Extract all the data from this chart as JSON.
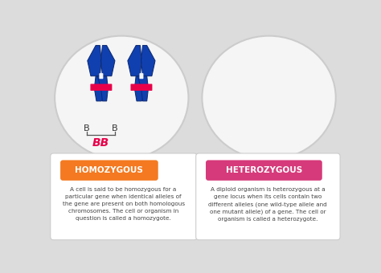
{
  "background_color": "#dcdcdc",
  "homo_label": "HOMOZYGOUS",
  "hetero_label": "HETEROZYGOUS",
  "homo_color": "#f47920",
  "hetero_color": "#d63a7a",
  "homo_text": "A cell is said to be homozygous for a\nparticular gene when identical alleles of\nthe gene are present on both homologous\nchromosomes. The cell or organism in\nquestion is called a homozygote.",
  "hetero_text": "A diploid organism is heterozygous at a\ngene locus when its cells contain two\ndifferent alleles (one wild-type allele and\none mutant allele) of a gene. The cell or\norganism is called a heterozygote.",
  "chrom_blue": "#1040b0",
  "chrom_blue_dark": "#0a2870",
  "chrom_pink": "#e8004a",
  "chrom_yellow": "#f0e020",
  "label_color": "#333333",
  "bracket_color": "#555555",
  "bb_color": "#e8004a",
  "circle_face": "#f5f5f5",
  "circle_edge": "#cccccc",
  "box_face": "#ffffff",
  "box_edge": "#cccccc"
}
